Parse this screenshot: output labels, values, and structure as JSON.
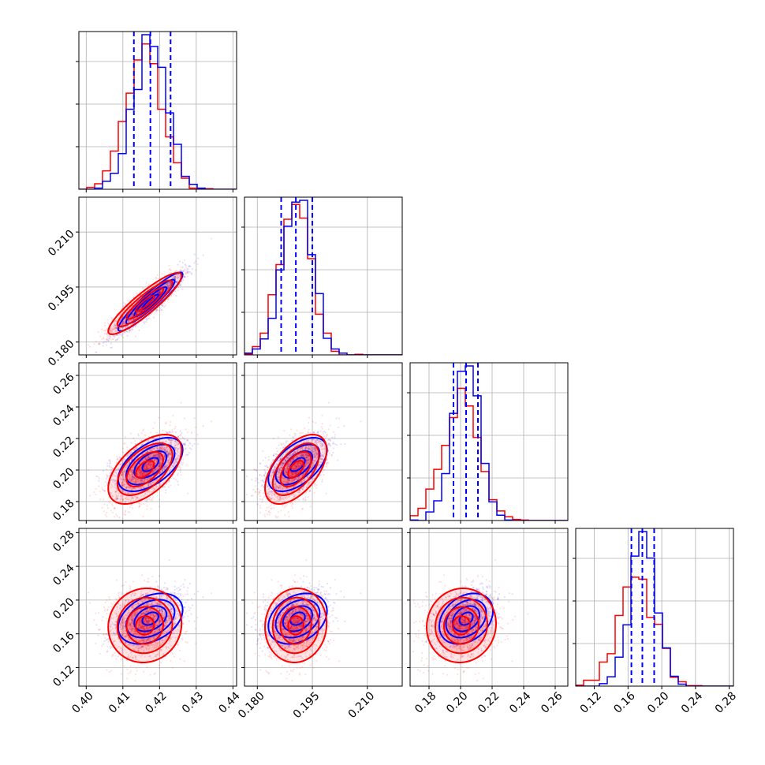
{
  "colors": {
    "primary": "#0000ff",
    "secondary": "#ff0000",
    "quantile_line": "#0000ff",
    "grid": "#b0b0b0"
  },
  "chart_data": {
    "type": "corner",
    "grid": true,
    "parameters": [
      {
        "range": [
          0.398,
          0.441
        ],
        "ticks": [
          "0.40",
          "0.41",
          "0.42",
          "0.43",
          "0.44"
        ],
        "tick_values": [
          0.4,
          0.41,
          0.42,
          0.43,
          0.44
        ]
      },
      {
        "range": [
          0.1765,
          0.2195
        ],
        "ticks": [
          "0.180",
          "0.195",
          "0.210"
        ],
        "tick_values": [
          0.18,
          0.195,
          0.21
        ]
      },
      {
        "range": [
          0.168,
          0.268
        ],
        "ticks": [
          "0.18",
          "0.20",
          "0.22",
          "0.24",
          "0.26"
        ],
        "tick_values": [
          0.18,
          0.2,
          0.22,
          0.24,
          0.26
        ]
      },
      {
        "range": [
          0.098,
          0.285
        ],
        "ticks": [
          "0.12",
          "0.16",
          "0.20",
          "0.24",
          "0.28"
        ],
        "tick_values": [
          0.12,
          0.16,
          0.2,
          0.24,
          0.28
        ]
      }
    ],
    "distributions": {
      "primary": {
        "color": "#0000ff",
        "mean": [
          0.4175,
          0.191,
          0.2035,
          0.178
        ],
        "std": [
          0.0044,
          0.004,
          0.0085,
          0.015
        ]
      },
      "secondary": {
        "color": "#ff0000",
        "mean": [
          0.416,
          0.1905,
          0.2005,
          0.17
        ],
        "std": [
          0.005,
          0.0042,
          0.011,
          0.022
        ]
      }
    },
    "correlations": {
      "primary": [
        [
          1,
          0.93,
          0.55,
          0.35
        ],
        [
          0.93,
          1,
          0.55,
          0.3
        ],
        [
          0.55,
          0.55,
          1,
          0.3
        ],
        [
          0.35,
          0.3,
          0.3,
          1
        ]
      ],
      "secondary": [
        [
          1,
          0.9,
          0.55,
          0.05
        ],
        [
          0.9,
          1,
          0.55,
          0.05
        ],
        [
          0.55,
          0.55,
          1,
          0.05
        ],
        [
          0.05,
          0.05,
          0.05,
          1
        ]
      ]
    },
    "quantile_lines": [
      [
        0.413,
        0.4175,
        0.423
      ],
      [
        0.1865,
        0.1905,
        0.195
      ],
      [
        0.1955,
        0.2035,
        0.211
      ],
      [
        0.164,
        0.177,
        0.191
      ]
    ],
    "contour_sigma_levels": [
      0.5,
      1.0,
      1.5,
      2.0
    ]
  }
}
